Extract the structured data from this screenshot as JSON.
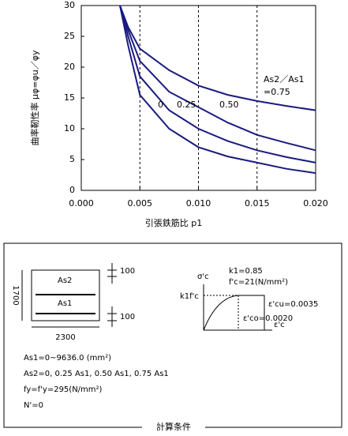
{
  "chart_data": {
    "type": "line",
    "x_label": "引張鉄筋比 p1",
    "y_label": "曲率靭性率 μφ=φu／φy",
    "annotation": "As2／As1",
    "x": [
      0.0033,
      0.004,
      0.005,
      0.0075,
      0.01,
      0.0125,
      0.015,
      0.0175,
      0.02
    ],
    "series": [
      {
        "name": "=0.75",
        "color": "#1a1a80",
        "values": [
          30,
          26.5,
          23,
          19.5,
          17,
          15.5,
          14.5,
          13.7,
          13
        ]
      },
      {
        "name": "0.50",
        "color": "#1a1a80",
        "values": [
          30,
          26,
          21,
          16,
          13.5,
          11,
          9,
          7.7,
          6.5
        ]
      },
      {
        "name": "0.25",
        "color": "#1a1a80",
        "values": [
          30,
          25,
          18.5,
          13,
          10,
          8,
          6.5,
          5.4,
          4.5
        ]
      },
      {
        "name": "0",
        "color": "#1a1a80",
        "values": [
          30,
          23.5,
          15.5,
          10,
          7,
          5.5,
          4.5,
          3.5,
          2.8
        ]
      }
    ],
    "xlim": [
      0,
      0.02
    ],
    "ylim": [
      0,
      30
    ],
    "xticks": [
      {
        "value": 0,
        "label": "0.000"
      },
      {
        "value": 0.005,
        "label": "0.005"
      },
      {
        "value": 0.01,
        "label": "0.010"
      },
      {
        "value": 0.015,
        "label": "0.015"
      },
      {
        "value": 0.02,
        "label": "0.020"
      }
    ],
    "yticks": [
      0,
      5,
      10,
      15,
      20,
      25,
      30
    ],
    "grid": "x"
  },
  "conditions": {
    "title": "計算条件",
    "section": {
      "top_dim": "100",
      "bottom_dim": "100",
      "height": "1700",
      "width": "2300",
      "top_bar": "As2",
      "bottom_bar": "As1"
    },
    "stress_strain": {
      "axis_y": "σ'c",
      "k1": "k1=0.85",
      "fc": "f'c=21(N/mm²)",
      "peak": "k1f'c",
      "ecu": "ε'cu=0.0035",
      "eco": "ε'co=0.0020",
      "axis_x": "ε'c"
    },
    "lines": [
      "As1=0~9636.0 (mm²)",
      "As2=0, 0.25 As1, 0.50 As1, 0.75 As1",
      "fy=f'y=295(N/mm²)",
      "N'=0"
    ]
  }
}
